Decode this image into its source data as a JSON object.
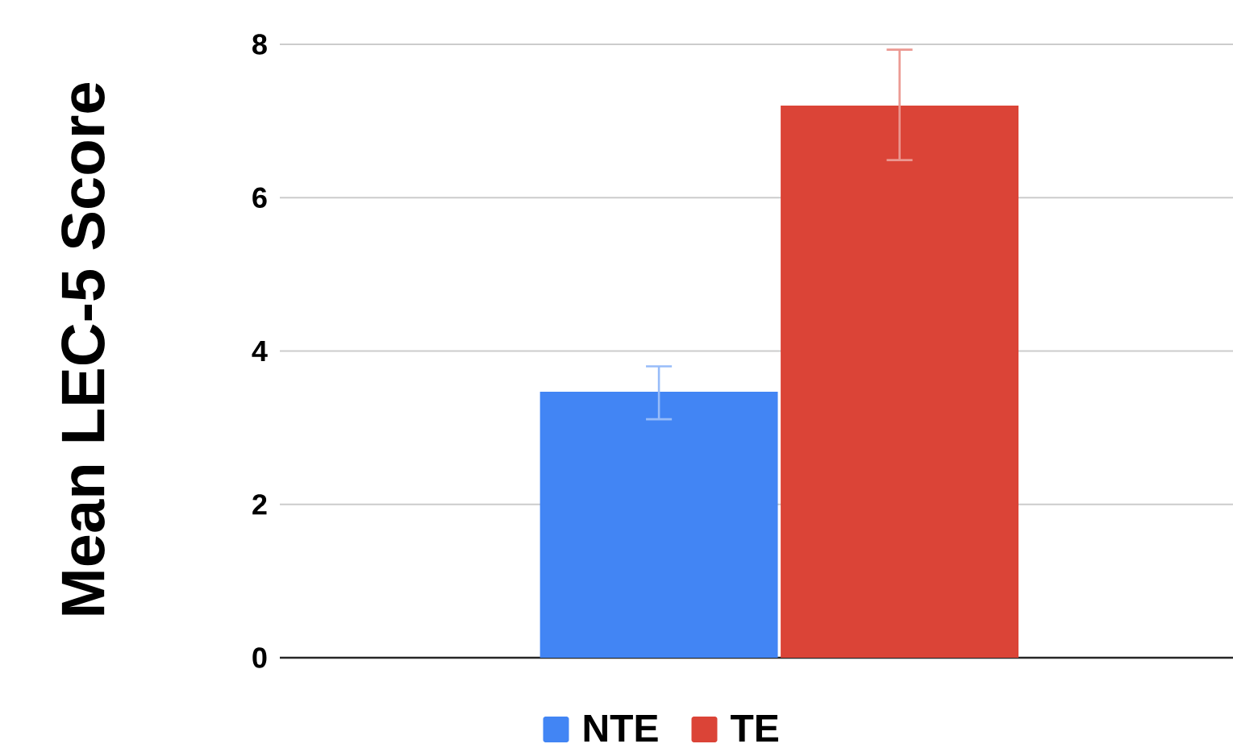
{
  "chart_data": {
    "type": "bar",
    "ylabel": "Mean LEC-5 Score",
    "categories": [
      null
    ],
    "series": [
      {
        "name": "NTE",
        "color": "#4285f4",
        "values": [
          3.47
        ],
        "errors": [
          [
            3.11,
            3.8
          ]
        ]
      },
      {
        "name": "TE",
        "color": "#db4437",
        "values": [
          7.2
        ],
        "errors": [
          [
            6.49,
            7.93
          ]
        ]
      }
    ],
    "ylim": [
      0,
      8
    ],
    "yticks": [
      0,
      2,
      4,
      6,
      8
    ],
    "grid": "y",
    "legend": "bottom"
  }
}
